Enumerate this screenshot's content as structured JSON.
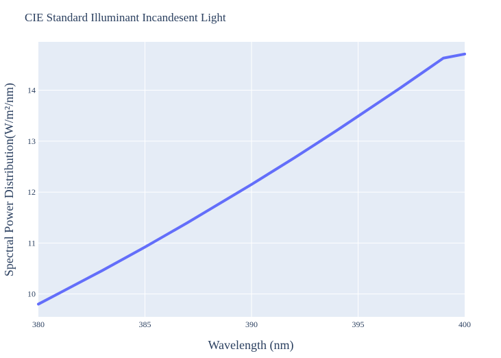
{
  "chart_data": {
    "type": "line",
    "title": "CIE Standard Illuminant Incandesent Light",
    "xlabel": "Wavelength (nm)",
    "ylabel": "Spectral Power Distribution(W/m²/nm)",
    "xlim": [
      380,
      400
    ],
    "ylim": [
      9.55,
      14.95
    ],
    "xticks": [
      380,
      385,
      390,
      395,
      400
    ],
    "xtick_labels": [
      "380",
      "385",
      "390",
      "395",
      "400"
    ],
    "yticks": [
      10,
      11,
      12,
      13,
      14
    ],
    "ytick_labels": [
      "10",
      "11",
      "12",
      "13",
      "14"
    ],
    "grid": true,
    "legend": "none",
    "series": [
      {
        "x": [
          380,
          381,
          382,
          383,
          384,
          385,
          386,
          387,
          388,
          389,
          390,
          391,
          392,
          393,
          394,
          395,
          396,
          397,
          398,
          399,
          400
        ],
        "y": [
          9.8,
          10.02,
          10.24,
          10.46,
          10.69,
          10.92,
          11.16,
          11.4,
          11.65,
          11.9,
          12.15,
          12.41,
          12.67,
          12.94,
          13.21,
          13.49,
          13.77,
          14.05,
          14.34,
          14.63,
          14.71
        ],
        "color": "#636efa"
      }
    ],
    "colors": {
      "plot_background": "#e5ecf6",
      "grid": "#ffffff",
      "text": "#2a3f5f",
      "line": "#636efa"
    }
  }
}
